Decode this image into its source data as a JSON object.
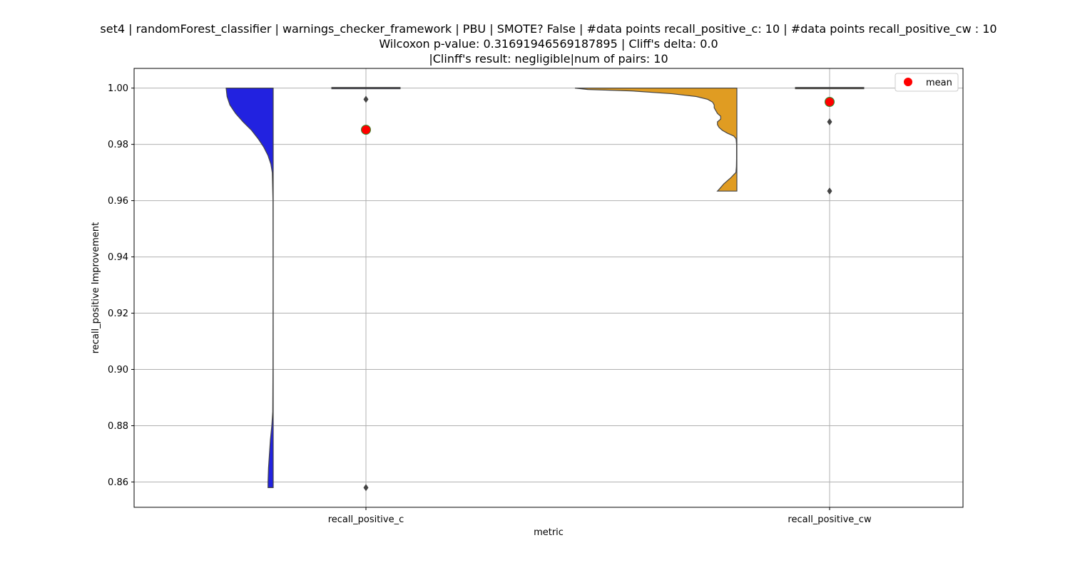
{
  "chart_data": {
    "type": "violin",
    "title_lines": [
      "set4 | randomForest_classifier | warnings_checker_framework | PBU | SMOTE? False | #data points recall_positive_c: 10 | #data points recall_positive_cw : 10",
      "Wilcoxon p-value: 0.31691946569187895 | Cliff's delta: 0.0",
      "|Clinff's result: negligible|num of pairs: 10"
    ],
    "xlabel": "metric",
    "ylabel": "recall_positive Improvement",
    "categories": [
      "recall_positive_c",
      "recall_positive_cw"
    ],
    "ylim": [
      0.851,
      1.007
    ],
    "yticks": [
      0.86,
      0.88,
      0.9,
      0.92,
      0.94,
      0.96,
      0.98,
      1.0
    ],
    "ytick_labels": [
      "0.86",
      "0.88",
      "0.90",
      "0.92",
      "0.94",
      "0.96",
      "0.98",
      "1.00"
    ],
    "grid": true,
    "legend": {
      "position": "top-right",
      "label": "mean"
    },
    "colors": {
      "c_fill": "#2222e0",
      "cw_fill": "#e09c22",
      "mean_marker": "#ff0000",
      "mean_edge": "#2e8b2e",
      "outline": "#444444",
      "grid": "#b0b0b0"
    },
    "series": [
      {
        "name": "recall_positive_c",
        "mean": 0.9852,
        "median": 1.0,
        "q1": 1.0,
        "q3": 1.0,
        "outliers": [
          0.996,
          0.858
        ],
        "violin_range": [
          0.858,
          1.0
        ],
        "density_profile": [
          [
            1.0,
            1.0
          ],
          [
            0.997,
            0.98
          ],
          [
            0.994,
            0.92
          ],
          [
            0.991,
            0.8
          ],
          [
            0.988,
            0.64
          ],
          [
            0.985,
            0.46
          ],
          [
            0.982,
            0.32
          ],
          [
            0.979,
            0.2
          ],
          [
            0.976,
            0.11
          ],
          [
            0.973,
            0.05
          ],
          [
            0.97,
            0.02
          ],
          [
            0.96,
            0.005
          ],
          [
            0.93,
            0.003
          ],
          [
            0.9,
            0.005
          ],
          [
            0.885,
            0.01
          ],
          [
            0.88,
            0.03
          ],
          [
            0.875,
            0.06
          ],
          [
            0.87,
            0.08
          ],
          [
            0.865,
            0.1
          ],
          [
            0.86,
            0.11
          ],
          [
            0.858,
            0.11
          ]
        ]
      },
      {
        "name": "recall_positive_cw",
        "mean": 0.9951,
        "median": 1.0,
        "q1": 1.0,
        "q3": 1.0,
        "outliers": [
          0.988,
          0.9634
        ],
        "violin_range": [
          0.9634,
          1.0
        ],
        "density_profile": [
          [
            1.0,
            1.0
          ],
          [
            0.9995,
            0.92
          ],
          [
            0.999,
            0.65
          ],
          [
            0.998,
            0.4
          ],
          [
            0.997,
            0.25
          ],
          [
            0.996,
            0.18
          ],
          [
            0.995,
            0.15
          ],
          [
            0.994,
            0.14
          ],
          [
            0.993,
            0.14
          ],
          [
            0.992,
            0.13
          ],
          [
            0.991,
            0.12
          ],
          [
            0.99,
            0.1
          ],
          [
            0.989,
            0.1
          ],
          [
            0.988,
            0.12
          ],
          [
            0.987,
            0.12
          ],
          [
            0.986,
            0.11
          ],
          [
            0.985,
            0.09
          ],
          [
            0.984,
            0.06
          ],
          [
            0.983,
            0.02
          ],
          [
            0.982,
            0.005
          ],
          [
            0.98,
            0.002
          ],
          [
            0.975,
            0.002
          ],
          [
            0.972,
            0.003
          ],
          [
            0.97,
            0.006
          ],
          [
            0.968,
            0.04
          ],
          [
            0.966,
            0.08
          ],
          [
            0.964,
            0.11
          ],
          [
            0.9634,
            0.12
          ]
        ]
      }
    ]
  }
}
